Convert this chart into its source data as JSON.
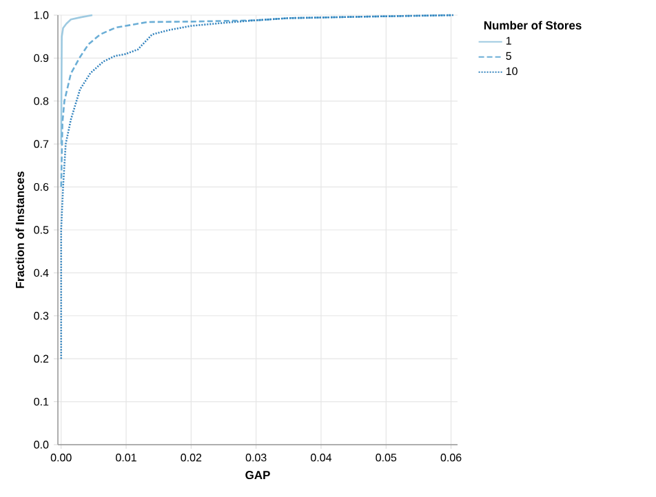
{
  "chart_data": {
    "type": "line",
    "xlabel": "GAP",
    "ylabel": "Fraction of Instances",
    "legend_title": "Number of Stores",
    "legend": "top right",
    "grid": true,
    "xlim": [
      -0.0005,
      0.061
    ],
    "ylim": [
      0,
      1
    ],
    "xticks": [
      {
        "value": 0,
        "label": "0.00"
      },
      0.01,
      0.02,
      0.03,
      0.04,
      0.05,
      0.06
    ],
    "yticks": [
      {
        "value": 0,
        "label": "0.0"
      },
      0.1,
      0.2,
      0.3,
      0.4,
      0.5,
      0.6,
      0.7,
      0.8,
      0.9,
      {
        "value": 1,
        "label": "1.0"
      }
    ],
    "series": [
      {
        "name": "1",
        "color": "#9ecae1",
        "line_style": "solid",
        "x": [
          0,
          0.0001,
          0.0003,
          0.0008,
          0.0015,
          0.003,
          0.0048
        ],
        "values": [
          0.7,
          0.95,
          0.97,
          0.98,
          0.99,
          0.995,
          1.0
        ]
      },
      {
        "name": "5",
        "color": "#6baed6",
        "line_style": "dashed",
        "x": [
          0,
          0.0002,
          0.0005,
          0.0015,
          0.0028,
          0.0042,
          0.006,
          0.0084,
          0.0133,
          0.02,
          0.03,
          0.035,
          0.045,
          0.06
        ],
        "values": [
          0.6,
          0.75,
          0.8,
          0.864,
          0.9,
          0.932,
          0.955,
          0.971,
          0.984,
          0.985,
          0.988,
          0.993,
          0.996,
          1.0
        ]
      },
      {
        "name": "10",
        "color": "#3182bd",
        "line_style": "dotted",
        "x": [
          0,
          0,
          0.0003,
          0.0007,
          0.0015,
          0.0029,
          0.0045,
          0.0065,
          0.0083,
          0.0098,
          0.0118,
          0.014,
          0.0165,
          0.02,
          0.025,
          0.03,
          0.035,
          0.045,
          0.0605
        ],
        "values": [
          0.2,
          0.5,
          0.6,
          0.7,
          0.757,
          0.827,
          0.865,
          0.892,
          0.905,
          0.909,
          0.92,
          0.955,
          0.965,
          0.975,
          0.982,
          0.988,
          0.993,
          0.996,
          1.0
        ]
      }
    ]
  }
}
